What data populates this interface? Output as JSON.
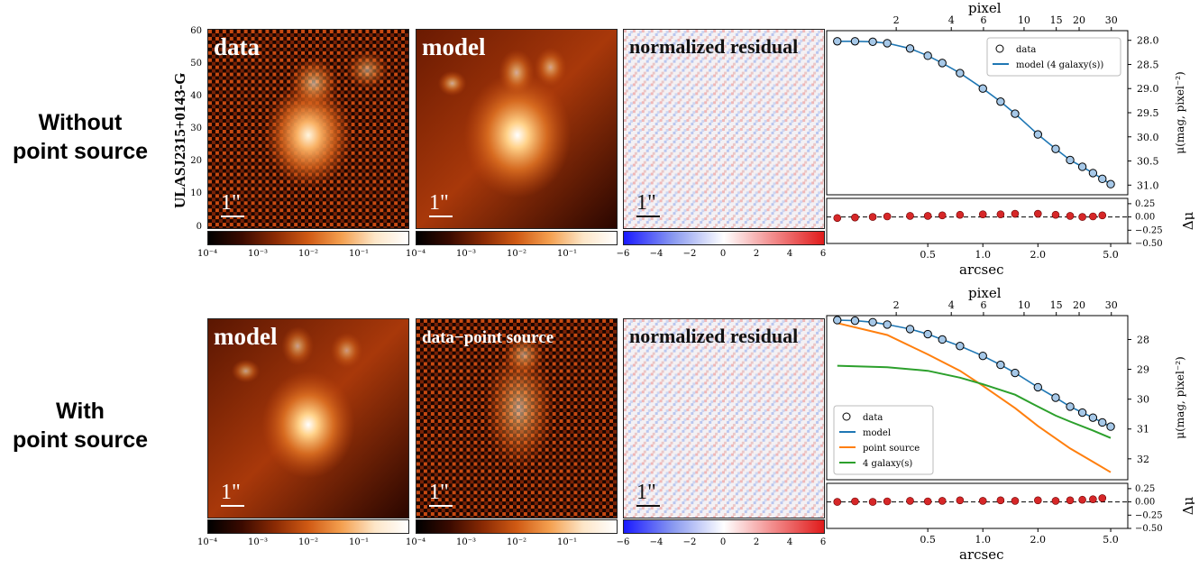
{
  "row_labels": {
    "top": "Without\npoint source",
    "bottom": "With\npoint source"
  },
  "object_name": "ULASJ2315+0143-G",
  "image_axis": {
    "ticks": [
      "0",
      "10",
      "20",
      "30",
      "40",
      "50",
      "60"
    ]
  },
  "scale_label": "1\"",
  "panels_top": [
    {
      "title": "data"
    },
    {
      "title": "model"
    },
    {
      "title": "normalized residual"
    }
  ],
  "panels_bottom": [
    {
      "title": "model"
    },
    {
      "title": "data−point source"
    },
    {
      "title": "normalized residual"
    }
  ],
  "colorbars": {
    "log_ticks": [
      "10⁻⁴",
      "10⁻³",
      "10⁻²",
      "10⁻¹"
    ],
    "lin_ticks": [
      "−6",
      "−4",
      "−2",
      "0",
      "2",
      "4",
      "6"
    ]
  },
  "colors": {
    "data_marker": "#a6c8e8",
    "model": "#1f77b4",
    "point_source": "#ff7f0e",
    "galaxy": "#2ca02c",
    "residual_marker": "#d62728"
  },
  "chart_data": [
    {
      "type": "line",
      "xlabel": "arcsec",
      "top_xlabel": "pixel",
      "ylabel": "μ(mag, pixel⁻²)",
      "resid_ylabel": "Δμ",
      "x_scale": "log",
      "xlim": [
        0.14,
        6.2
      ],
      "ylim": [
        31.2,
        27.8
      ],
      "xticks": [
        "0.5",
        "1.0",
        "2.0",
        "5.0"
      ],
      "top_ticks": [
        "2",
        "4",
        "6",
        "10",
        "15",
        "20",
        "30"
      ],
      "yticks": [
        "28.0",
        "28.5",
        "29.0",
        "29.5",
        "30.0",
        "30.5",
        "31.0"
      ],
      "resid_ylim": [
        -0.5,
        0.35
      ],
      "resid_yticks": [
        "0.25",
        "0.00",
        "−0.25",
        "−0.50"
      ],
      "legend_loc": "top-right",
      "legend": [
        "data",
        "model (4 galaxy(s))"
      ],
      "data": {
        "x": [
          0.16,
          0.2,
          0.25,
          0.3,
          0.4,
          0.5,
          0.6,
          0.75,
          1.0,
          1.25,
          1.5,
          2.0,
          2.5,
          3.0,
          3.5,
          4.0,
          4.5,
          5.0
        ],
        "y": [
          28.02,
          28.02,
          28.03,
          28.06,
          28.17,
          28.32,
          28.47,
          28.68,
          29.0,
          29.27,
          29.52,
          29.95,
          30.25,
          30.48,
          30.62,
          30.75,
          30.87,
          30.98
        ]
      },
      "residual": {
        "x": [
          0.16,
          0.2,
          0.25,
          0.3,
          0.4,
          0.5,
          0.6,
          0.75,
          1.0,
          1.25,
          1.5,
          2.0,
          2.5,
          3.0,
          3.5,
          4.0,
          4.5
        ],
        "y": [
          -0.02,
          -0.01,
          0.0,
          0.01,
          0.02,
          0.02,
          0.03,
          0.04,
          0.05,
          0.05,
          0.06,
          0.06,
          0.04,
          0.02,
          0.0,
          0.01,
          0.03
        ]
      }
    },
    {
      "type": "line",
      "xlabel": "arcsec",
      "top_xlabel": "pixel",
      "ylabel": "μ(mag, pixel⁻²)",
      "resid_ylabel": "Δμ",
      "x_scale": "log",
      "xlim": [
        0.14,
        6.2
      ],
      "ylim": [
        32.7,
        27.2
      ],
      "xticks": [
        "0.5",
        "1.0",
        "2.0",
        "5.0"
      ],
      "top_ticks": [
        "2",
        "4",
        "6",
        "10",
        "15",
        "20",
        "30"
      ],
      "yticks": [
        "28",
        "29",
        "30",
        "31",
        "32"
      ],
      "resid_ylim": [
        -0.5,
        0.35
      ],
      "resid_yticks": [
        "0.25",
        "0.00",
        "−0.25",
        "−0.50"
      ],
      "legend_loc": "lower-left",
      "legend": [
        "data",
        "model",
        "point source",
        "4 galaxy(s)"
      ],
      "data": {
        "x": [
          0.16,
          0.2,
          0.25,
          0.3,
          0.4,
          0.5,
          0.6,
          0.75,
          1.0,
          1.25,
          1.5,
          2.0,
          2.5,
          3.0,
          3.5,
          4.0,
          4.5,
          5.0
        ],
        "y": [
          27.35,
          27.37,
          27.42,
          27.5,
          27.65,
          27.82,
          28.0,
          28.22,
          28.55,
          28.85,
          29.12,
          29.6,
          29.95,
          30.25,
          30.45,
          30.62,
          30.78,
          30.92
        ]
      },
      "series": [
        {
          "name": "point source",
          "x": [
            0.16,
            0.3,
            0.5,
            0.75,
            1.0,
            1.5,
            2.0,
            3.0,
            4.0,
            5.0
          ],
          "y": [
            27.45,
            27.85,
            28.5,
            29.05,
            29.55,
            30.3,
            30.9,
            31.65,
            32.1,
            32.45
          ]
        },
        {
          "name": "4 galaxy(s)",
          "x": [
            0.16,
            0.3,
            0.5,
            0.75,
            1.0,
            1.5,
            2.0,
            2.5,
            3.0,
            4.0,
            5.0
          ],
          "y": [
            28.88,
            28.93,
            29.05,
            29.28,
            29.5,
            29.85,
            30.25,
            30.55,
            30.75,
            31.05,
            31.3
          ]
        }
      ],
      "residual": {
        "x": [
          0.16,
          0.2,
          0.25,
          0.3,
          0.4,
          0.5,
          0.6,
          0.75,
          1.0,
          1.25,
          1.5,
          2.0,
          2.5,
          3.0,
          3.5,
          4.0,
          4.5
        ],
        "y": [
          0.0,
          0.01,
          0.0,
          0.01,
          0.02,
          0.01,
          0.02,
          0.03,
          0.02,
          0.03,
          0.02,
          0.03,
          0.02,
          0.03,
          0.04,
          0.05,
          0.07
        ]
      }
    }
  ]
}
